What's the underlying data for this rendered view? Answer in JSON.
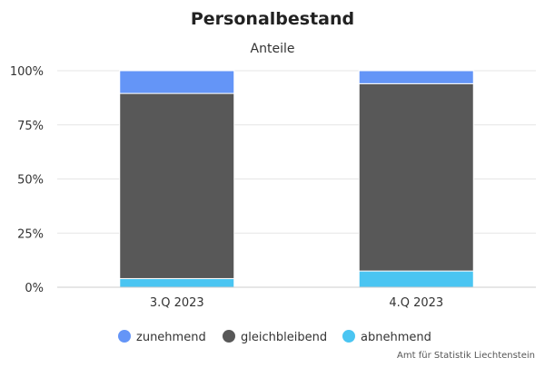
{
  "chart_data": {
    "type": "bar",
    "stacked": true,
    "title": "Personalbestand",
    "subtitle": "Anteile",
    "categories": [
      "3.Q 2023",
      "4.Q 2023"
    ],
    "series": [
      {
        "name": "abnehmend",
        "values": [
          4,
          7.5
        ],
        "color": "#4ac5f2"
      },
      {
        "name": "gleichbleibend",
        "values": [
          85.5,
          86.5
        ],
        "color": "#585858"
      },
      {
        "name": "zunehmend",
        "values": [
          10.5,
          6
        ],
        "color": "#6495f7"
      }
    ],
    "legend_order": [
      "zunehmend",
      "gleichbleibend",
      "abnehmend"
    ],
    "y_ticks": [
      "0%",
      "25%",
      "50%",
      "75%",
      "100%"
    ],
    "ylim": [
      0,
      100
    ],
    "grid": true,
    "legend_position": "bottom-center",
    "credit": "Amt für Statistik Liechtenstein"
  }
}
